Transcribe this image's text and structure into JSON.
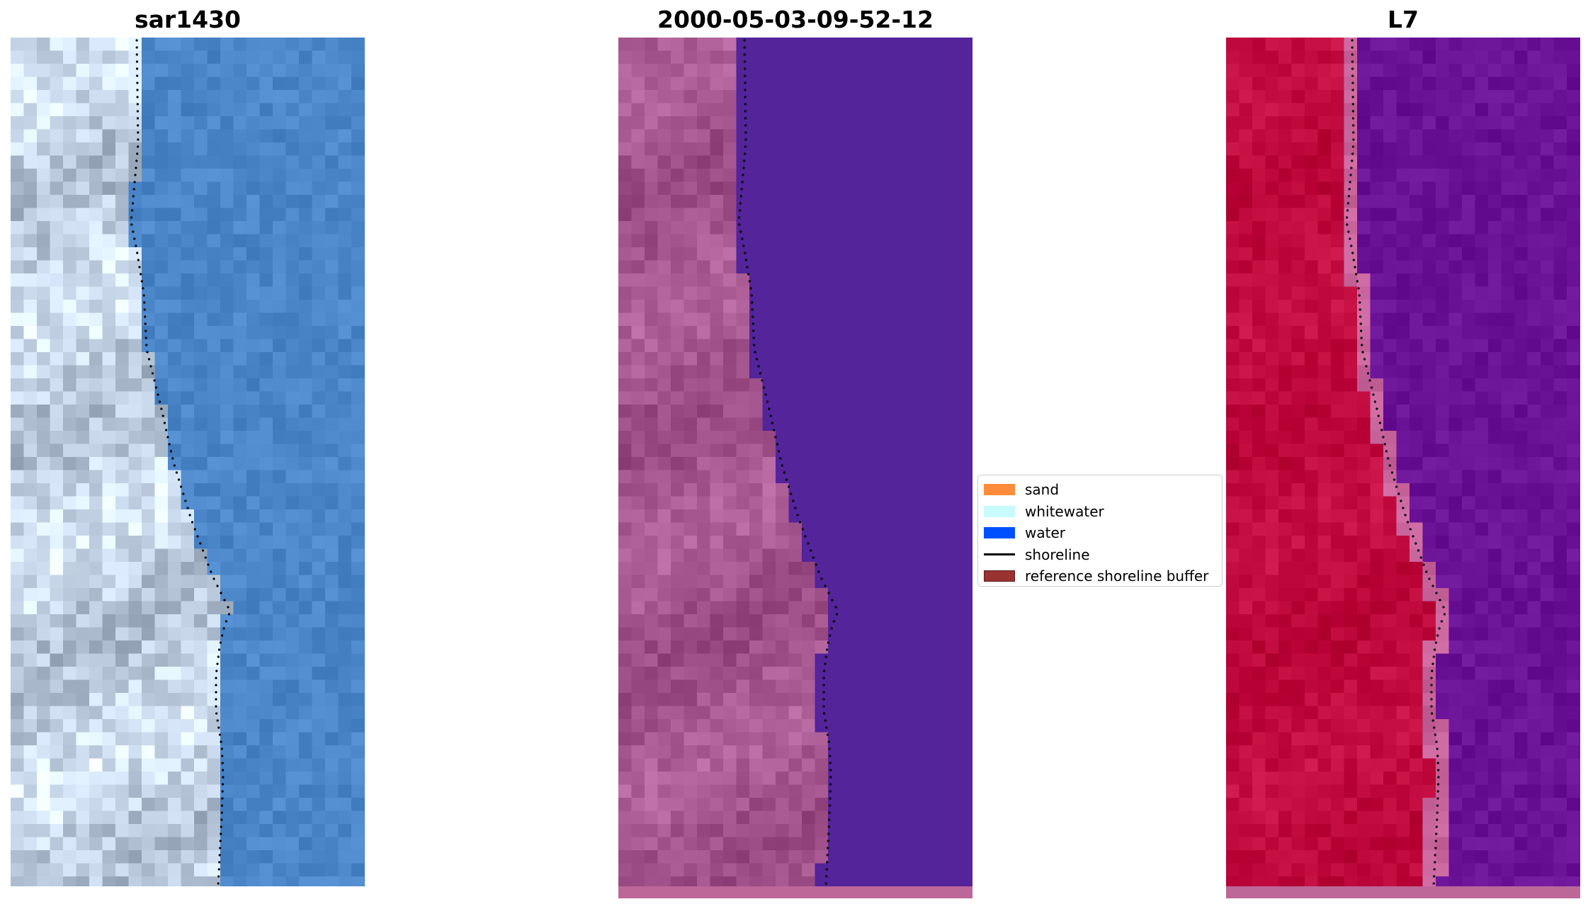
{
  "panels": [
    {
      "id": "rgb",
      "title": "sar1430"
    },
    {
      "id": "classified",
      "title": "2000-05-03-09-52-12"
    },
    {
      "id": "index",
      "title": "L7"
    }
  ],
  "legend": {
    "placement": "center",
    "items": [
      {
        "label": "sand",
        "kind": "patch",
        "color": "#ff8c3a",
        "edge": "#ff8c3a"
      },
      {
        "label": "whitewater",
        "kind": "patch",
        "color": "#c8fcfc",
        "edge": "#c8fcfc"
      },
      {
        "label": "water",
        "kind": "patch",
        "color": "#0050ff",
        "edge": "#0050ff"
      },
      {
        "label": "shoreline",
        "kind": "line",
        "color": "#000000"
      },
      {
        "label": "reference shoreline buffer",
        "kind": "patch",
        "color": "#9b3232",
        "edge": "#5a1a1a"
      }
    ]
  },
  "colors": {
    "water_rgb": "#4a86c8",
    "land_rgb": "#c4d4e6",
    "water_classified": "#53249a",
    "land_classified": "#a5568f",
    "water_index": "#6a1296",
    "land_index": "#c00a3e",
    "buffer_index": "#c8649c",
    "bottom_strip": "#bd6799",
    "shoreline": "#000000"
  }
}
